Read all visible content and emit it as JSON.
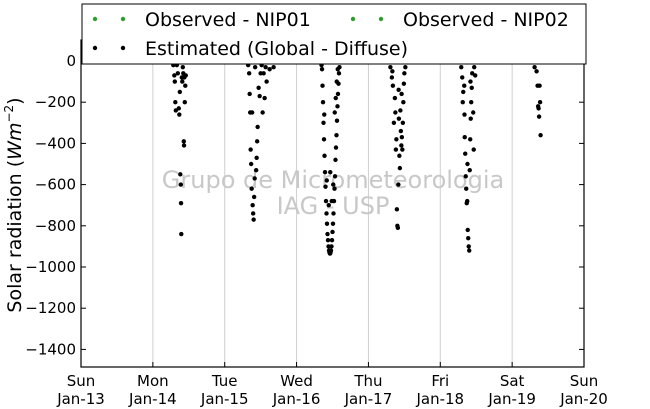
{
  "chart_data": {
    "type": "scatter",
    "ylabel": "Solar radiation ($Wm^{-2}$)",
    "ylabel_text": "Solar radiation (",
    "ylabel_unit_w": "Wm",
    "ylabel_unit_exp": "−2",
    "ylabel_close": ")",
    "ylim": [
      -1500,
      0
    ],
    "yticks": [
      0,
      -200,
      -400,
      -600,
      -800,
      -1000,
      -1200,
      -1400
    ],
    "ytick_labels": [
      "0",
      "−200",
      "−400",
      "−600",
      "−800",
      "−1000",
      "−1200",
      "−1400"
    ],
    "xlim": [
      "2013-01-13",
      "2013-01-20"
    ],
    "xticks": [
      "2013-01-13",
      "2013-01-14",
      "2013-01-15",
      "2013-01-16",
      "2013-01-17",
      "2013-01-18",
      "2013-01-19",
      "2013-01-20"
    ],
    "xtick_labels": [
      [
        "Sun",
        "Jan-13"
      ],
      [
        "Mon",
        "Jan-14"
      ],
      [
        "Tue",
        "Jan-15"
      ],
      [
        "Wed",
        "Jan-16"
      ],
      [
        "Thu",
        "Jan-17"
      ],
      [
        "Fri",
        "Jan-18"
      ],
      [
        "Sat",
        "Jan-19"
      ],
      [
        "Sun",
        "Jan-20"
      ]
    ],
    "grid": "vertical",
    "legend_placement": "top",
    "watermark": [
      "Grupo de Micrometeorologia",
      "IAG - USP"
    ],
    "series": [
      {
        "name": "Observed - NIP01",
        "color": "#2ca02c",
        "points": []
      },
      {
        "name": "Observed - NIP02",
        "color": "#2ca02c",
        "points": []
      },
      {
        "name": "Estimated (Global - Diffuse)",
        "color": "#000000",
        "points": [
          [
            "2013-01-14 06:50",
            -20
          ],
          [
            "2013-01-14 07:10",
            -70
          ],
          [
            "2013-01-14 07:20",
            -100
          ],
          [
            "2013-01-14 07:30",
            -200
          ],
          [
            "2013-01-14 07:40",
            -240
          ],
          [
            "2013-01-14 08:00",
            -20
          ],
          [
            "2013-01-14 08:20",
            -60
          ],
          [
            "2013-01-14 08:40",
            -230
          ],
          [
            "2013-01-14 08:50",
            -260
          ],
          [
            "2013-01-14 09:00",
            -150
          ],
          [
            "2013-01-14 09:10",
            -550
          ],
          [
            "2013-01-14 09:20",
            -600
          ],
          [
            "2013-01-14 09:25",
            -690
          ],
          [
            "2013-01-14 09:30",
            -840
          ],
          [
            "2013-01-14 09:40",
            -80
          ],
          [
            "2013-01-14 09:50",
            -100
          ],
          [
            "2013-01-14 10:00",
            -30
          ],
          [
            "2013-01-14 10:10",
            -60
          ],
          [
            "2013-01-14 10:20",
            -390
          ],
          [
            "2013-01-14 10:25",
            -410
          ],
          [
            "2013-01-14 10:30",
            -80
          ],
          [
            "2013-01-14 10:40",
            -200
          ],
          [
            "2013-01-14 10:50",
            -120
          ],
          [
            "2013-01-14 11:00",
            -70
          ],
          [
            "2013-01-15 07:50",
            -20
          ],
          [
            "2013-01-15 08:10",
            -60
          ],
          [
            "2013-01-15 08:20",
            -160
          ],
          [
            "2013-01-15 08:30",
            -250
          ],
          [
            "2013-01-15 08:40",
            -430
          ],
          [
            "2013-01-15 08:50",
            -500
          ],
          [
            "2013-01-15 09:00",
            -620
          ],
          [
            "2013-01-15 09:10",
            -250
          ],
          [
            "2013-01-15 09:20",
            -700
          ],
          [
            "2013-01-15 09:30",
            -740
          ],
          [
            "2013-01-15 09:40",
            -770
          ],
          [
            "2013-01-15 09:50",
            -660
          ],
          [
            "2013-01-15 10:00",
            -570
          ],
          [
            "2013-01-15 10:10",
            -30
          ],
          [
            "2013-01-15 10:30",
            -530
          ],
          [
            "2013-01-15 10:40",
            -470
          ],
          [
            "2013-01-15 10:50",
            -390
          ],
          [
            "2013-01-15 11:00",
            -320
          ],
          [
            "2013-01-15 11:20",
            -130
          ],
          [
            "2013-01-15 11:40",
            -170
          ],
          [
            "2013-01-15 12:00",
            -60
          ],
          [
            "2013-01-15 12:20",
            -20
          ],
          [
            "2013-01-15 12:40",
            -250
          ],
          [
            "2013-01-15 13:00",
            -60
          ],
          [
            "2013-01-15 13:20",
            -180
          ],
          [
            "2013-01-15 13:40",
            -30
          ],
          [
            "2013-01-15 14:00",
            -100
          ],
          [
            "2013-01-15 15:00",
            -40
          ],
          [
            "2013-01-15 16:20",
            -30
          ],
          [
            "2013-01-16 08:20",
            -20
          ],
          [
            "2013-01-16 08:30",
            -40
          ],
          [
            "2013-01-16 08:40",
            -120
          ],
          [
            "2013-01-16 08:50",
            -200
          ],
          [
            "2013-01-16 09:00",
            -300
          ],
          [
            "2013-01-16 09:10",
            -380
          ],
          [
            "2013-01-16 09:20",
            -460
          ],
          [
            "2013-01-16 09:30",
            -540
          ],
          [
            "2013-01-16 09:40",
            -610
          ],
          [
            "2013-01-16 09:50",
            -680
          ],
          [
            "2013-01-16 10:00",
            -740
          ],
          [
            "2013-01-16 10:10",
            -790
          ],
          [
            "2013-01-16 10:20",
            -840
          ],
          [
            "2013-01-16 10:30",
            -870
          ],
          [
            "2013-01-16 10:40",
            -900
          ],
          [
            "2013-01-16 10:50",
            -920
          ],
          [
            "2013-01-16 11:00",
            -930
          ],
          [
            "2013-01-16 11:10",
            -935
          ],
          [
            "2013-01-16 11:20",
            -930
          ],
          [
            "2013-01-16 11:30",
            -920
          ],
          [
            "2013-01-16 11:40",
            -900
          ],
          [
            "2013-01-16 11:50",
            -870
          ],
          [
            "2013-01-16 12:00",
            -830
          ],
          [
            "2013-01-16 12:10",
            -790
          ],
          [
            "2013-01-16 12:20",
            -740
          ],
          [
            "2013-01-16 12:30",
            -680
          ],
          [
            "2013-01-16 12:40",
            -620
          ],
          [
            "2013-01-16 12:50",
            -560
          ],
          [
            "2013-01-16 13:00",
            -480
          ],
          [
            "2013-01-16 13:10",
            -420
          ],
          [
            "2013-01-16 13:20",
            -360
          ],
          [
            "2013-01-16 13:30",
            -290
          ],
          [
            "2013-01-16 13:40",
            -220
          ],
          [
            "2013-01-16 13:50",
            -160
          ],
          [
            "2013-01-16 14:00",
            -110
          ],
          [
            "2013-01-16 14:10",
            -60
          ],
          [
            "2013-01-16 14:20",
            -30
          ],
          [
            "2013-01-16 09:15",
            -260
          ],
          [
            "2013-01-16 10:05",
            -580
          ],
          [
            "2013-01-16 10:45",
            -700
          ],
          [
            "2013-01-16 11:15",
            -540
          ],
          [
            "2013-01-16 11:45",
            -680
          ],
          [
            "2013-01-16 12:15",
            -600
          ],
          [
            "2013-01-16 12:45",
            -250
          ],
          [
            "2013-01-16 13:05",
            -180
          ],
          [
            "2013-01-16 13:25",
            -100
          ],
          [
            "2013-01-16 13:45",
            -40
          ],
          [
            "2013-01-17 07:20",
            -30
          ],
          [
            "2013-01-17 07:50",
            -80
          ],
          [
            "2013-01-17 08:10",
            -120
          ],
          [
            "2013-01-17 08:30",
            -300
          ],
          [
            "2013-01-17 08:50",
            -180
          ],
          [
            "2013-01-17 09:10",
            -430
          ],
          [
            "2013-01-17 09:20",
            -380
          ],
          [
            "2013-01-17 09:30",
            -720
          ],
          [
            "2013-01-17 09:40",
            -800
          ],
          [
            "2013-01-17 09:50",
            -810
          ],
          [
            "2013-01-17 10:00",
            -600
          ],
          [
            "2013-01-17 10:10",
            -280
          ],
          [
            "2013-01-17 10:20",
            -460
          ],
          [
            "2013-01-17 10:30",
            -520
          ],
          [
            "2013-01-17 10:40",
            -240
          ],
          [
            "2013-01-17 10:50",
            -340
          ],
          [
            "2013-01-17 11:00",
            -410
          ],
          [
            "2013-01-17 11:10",
            -370
          ],
          [
            "2013-01-17 11:20",
            -430
          ],
          [
            "2013-01-17 11:30",
            -300
          ],
          [
            "2013-01-17 11:40",
            -200
          ],
          [
            "2013-01-17 11:50",
            -110
          ],
          [
            "2013-01-17 12:00",
            -60
          ],
          [
            "2013-01-17 12:20",
            -30
          ],
          [
            "2013-01-17 08:00",
            -50
          ],
          [
            "2013-01-17 09:00",
            -250
          ],
          [
            "2013-01-17 10:05",
            -140
          ],
          [
            "2013-01-17 11:05",
            -160
          ],
          [
            "2013-01-18 07:00",
            -30
          ],
          [
            "2013-01-18 07:20",
            -80
          ],
          [
            "2013-01-18 07:40",
            -150
          ],
          [
            "2013-01-18 08:00",
            -120
          ],
          [
            "2013-01-18 08:10",
            -370
          ],
          [
            "2013-01-18 08:20",
            -450
          ],
          [
            "2013-01-18 08:30",
            -560
          ],
          [
            "2013-01-18 08:40",
            -620
          ],
          [
            "2013-01-18 08:50",
            -690
          ],
          [
            "2013-01-18 09:00",
            -680
          ],
          [
            "2013-01-18 09:10",
            -820
          ],
          [
            "2013-01-18 09:20",
            -860
          ],
          [
            "2013-01-18 09:30",
            -900
          ],
          [
            "2013-01-18 09:40",
            -920
          ],
          [
            "2013-01-18 09:50",
            -530
          ],
          [
            "2013-01-18 10:00",
            -380
          ],
          [
            "2013-01-18 10:10",
            -280
          ],
          [
            "2013-01-18 10:20",
            -200
          ],
          [
            "2013-01-18 10:30",
            -130
          ],
          [
            "2013-01-18 10:40",
            -60
          ],
          [
            "2013-01-18 11:00",
            -250
          ],
          [
            "2013-01-18 11:10",
            -430
          ],
          [
            "2013-01-18 11:20",
            -30
          ],
          [
            "2013-01-18 11:40",
            -70
          ],
          [
            "2013-01-18 07:30",
            -200
          ],
          [
            "2013-01-18 08:05",
            -260
          ],
          [
            "2013-01-18 09:05",
            -500
          ],
          [
            "2013-01-18 10:05",
            -100
          ],
          [
            "2013-01-19 07:30",
            -30
          ],
          [
            "2013-01-19 08:10",
            -50
          ],
          [
            "2013-01-19 08:30",
            -120
          ],
          [
            "2013-01-19 08:40",
            -220
          ],
          [
            "2013-01-19 08:50",
            -230
          ],
          [
            "2013-01-19 09:00",
            -270
          ],
          [
            "2013-01-19 09:10",
            -120
          ],
          [
            "2013-01-19 09:20",
            -200
          ],
          [
            "2013-01-19 09:30",
            -360
          ]
        ]
      }
    ]
  }
}
